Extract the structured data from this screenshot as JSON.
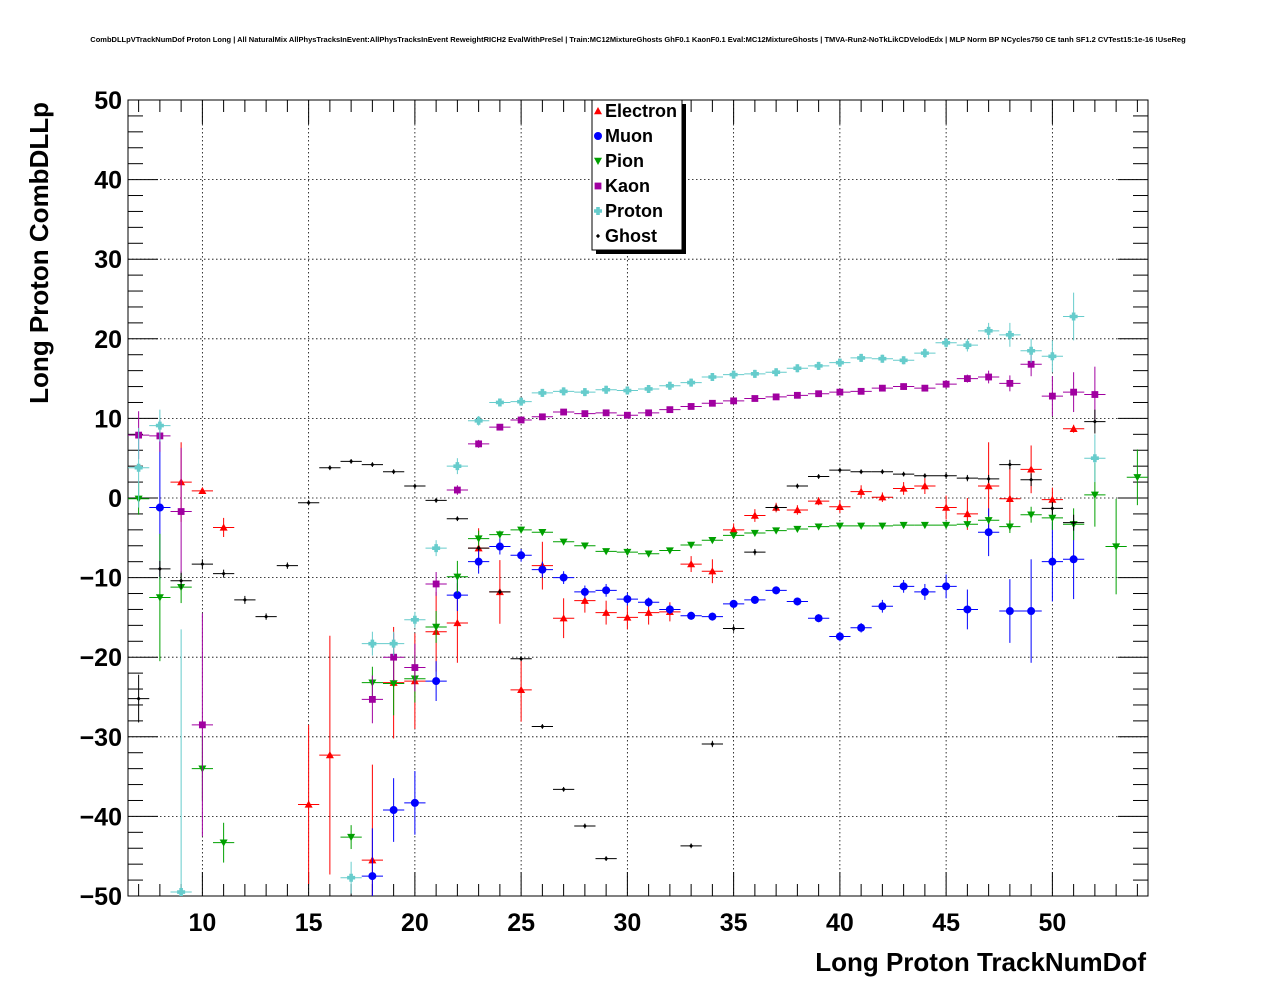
{
  "chart_data": {
    "type": "scatter",
    "title": "CombDLLpVTrackNumDof Proton Long | All NaturalMix AllPhysTracksInEvent:AllPhysTracksInEvent ReweightRICH2 EvalWithPreSel | Train:MC12MixtureGhosts GhF0.1 KaonF0.1 Eval:MC12MixtureGhosts | TMVA-Run2-NoTkLikCDVelodEdx | MLP Norm BP NCycles750 CE tanh SF1.2 CVTest15:1e-16 !UseReg",
    "xlabel": "Long Proton TrackNumDof",
    "ylabel": "Long Proton CombDLLp",
    "xlim": [
      6.5,
      54.5
    ],
    "ylim": [
      -50,
      50
    ],
    "xticks": [
      10,
      15,
      20,
      25,
      30,
      35,
      40,
      45,
      50
    ],
    "yticks": [
      -50,
      -40,
      -30,
      -20,
      -10,
      0,
      10,
      20,
      30,
      40,
      50
    ],
    "grid": true,
    "legend_position": "top-center",
    "series": [
      {
        "name": "Electron",
        "color": "#ff0000",
        "marker": "triangle-up",
        "points": [
          [
            9,
            2,
            5
          ],
          [
            10,
            0.9,
            0.3
          ],
          [
            11,
            -3.7,
            1.2
          ],
          [
            15,
            -38.5,
            10
          ],
          [
            16,
            -32.3,
            15
          ],
          [
            18,
            -45.5,
            12
          ],
          [
            19,
            -23.2,
            7
          ],
          [
            20,
            -23,
            6
          ],
          [
            21,
            -16.8,
            5
          ],
          [
            22,
            -15.7,
            5
          ],
          [
            23,
            -6.3,
            2.5
          ],
          [
            24,
            -11.8,
            4
          ],
          [
            25,
            -24.1,
            4
          ],
          [
            26,
            -8.5,
            3
          ],
          [
            27,
            -15.1,
            2.5
          ],
          [
            28,
            -12.9,
            1.5
          ],
          [
            29,
            -14.4,
            1.5
          ],
          [
            30,
            -15,
            1.5
          ],
          [
            31,
            -14.4,
            1.5
          ],
          [
            32,
            -14.3,
            1.2
          ],
          [
            33,
            -8.3,
            1
          ],
          [
            34,
            -9.2,
            1.5
          ],
          [
            35,
            -4,
            0.8
          ],
          [
            36,
            -2.2,
            0.8
          ],
          [
            37,
            -1.2,
            0.6
          ],
          [
            38,
            -1.5,
            0.6
          ],
          [
            39,
            -0.4,
            0.5
          ],
          [
            40,
            -1.1,
            0.8
          ],
          [
            41,
            0.8,
            0.8
          ],
          [
            42,
            0.1,
            0.6
          ],
          [
            43,
            1.2,
            0.8
          ],
          [
            44,
            1.5,
            1
          ],
          [
            45,
            -1.2,
            1.5
          ],
          [
            46,
            -2,
            2
          ],
          [
            47,
            1.5,
            5.5
          ],
          [
            48,
            -0.1,
            4
          ],
          [
            49,
            3.6,
            3
          ],
          [
            50,
            -0.2,
            1.5
          ],
          [
            51,
            8.7,
            0.5
          ]
        ]
      },
      {
        "name": "Muon",
        "color": "#0000ff",
        "marker": "circle",
        "points": [
          [
            8,
            -1.2,
            9
          ],
          [
            18,
            -47.5,
            6
          ],
          [
            19,
            -39.2,
            4
          ],
          [
            20,
            -38.3,
            4
          ],
          [
            21,
            -23,
            2.5
          ],
          [
            22,
            -12.2,
            2
          ],
          [
            23,
            -8,
            1.5
          ],
          [
            24,
            -6.1,
            1
          ],
          [
            25,
            -7.2,
            0.8
          ],
          [
            26,
            -9,
            1
          ],
          [
            27,
            -10,
            0.8
          ],
          [
            28,
            -11.8,
            0.8
          ],
          [
            29,
            -11.6,
            0.8
          ],
          [
            30,
            -12.7,
            0.8
          ],
          [
            31,
            -13.1,
            0.6
          ],
          [
            32,
            -14,
            0.6
          ],
          [
            33,
            -14.8,
            0.5
          ],
          [
            34,
            -14.9,
            0.5
          ],
          [
            35,
            -13.3,
            0.5
          ],
          [
            36,
            -12.8,
            0.5
          ],
          [
            37,
            -11.6,
            0.5
          ],
          [
            38,
            -13,
            0.5
          ],
          [
            39,
            -15.1,
            0.5
          ],
          [
            40,
            -17.4,
            0.6
          ],
          [
            41,
            -16.3,
            0.6
          ],
          [
            42,
            -13.6,
            0.8
          ],
          [
            43,
            -11.1,
            0.8
          ],
          [
            44,
            -11.8,
            1
          ],
          [
            45,
            -11.1,
            1.5
          ],
          [
            46,
            -14,
            2.5
          ],
          [
            47,
            -4.3,
            3
          ],
          [
            48,
            -14.2,
            4
          ],
          [
            49,
            -14.2,
            6.5
          ],
          [
            50,
            -8,
            5
          ],
          [
            51,
            -7.7,
            5
          ]
        ]
      },
      {
        "name": "Pion",
        "color": "#00a000",
        "marker": "triangle-down",
        "points": [
          [
            7,
            -0.1,
            2
          ],
          [
            8,
            -12.5,
            8
          ],
          [
            9,
            -11.2,
            2
          ],
          [
            10,
            -34,
            4
          ],
          [
            11,
            -43.3,
            2.5
          ],
          [
            17,
            -42.6,
            1.5
          ],
          [
            18,
            -23.2,
            2
          ],
          [
            19,
            -23.3,
            4
          ],
          [
            20,
            -22.7,
            3
          ],
          [
            21,
            -16.2,
            2
          ],
          [
            22,
            -9.9,
            2
          ],
          [
            23,
            -5.1,
            1
          ],
          [
            24,
            -4.6,
            0.5
          ],
          [
            25,
            -4,
            0.4
          ],
          [
            26,
            -4.3,
            0.4
          ],
          [
            27,
            -5.5,
            0.3
          ],
          [
            28,
            -6,
            0.3
          ],
          [
            29,
            -6.7,
            0.3
          ],
          [
            30,
            -6.8,
            0.3
          ],
          [
            31,
            -7,
            0.3
          ],
          [
            32,
            -6.6,
            0.3
          ],
          [
            33,
            -5.9,
            0.3
          ],
          [
            34,
            -5.3,
            0.3
          ],
          [
            35,
            -4.7,
            0.3
          ],
          [
            36,
            -4.4,
            0.3
          ],
          [
            37,
            -4.1,
            0.3
          ],
          [
            38,
            -3.9,
            0.3
          ],
          [
            39,
            -3.6,
            0.3
          ],
          [
            40,
            -3.5,
            0.3
          ],
          [
            41,
            -3.5,
            0.3
          ],
          [
            42,
            -3.5,
            0.3
          ],
          [
            43,
            -3.4,
            0.3
          ],
          [
            44,
            -3.4,
            0.3
          ],
          [
            45,
            -3.4,
            0.3
          ],
          [
            46,
            -3.3,
            0.4
          ],
          [
            47,
            -2.8,
            0.5
          ],
          [
            48,
            -3.6,
            0.8
          ],
          [
            49,
            -2.1,
            1
          ],
          [
            50,
            -2.5,
            1.5
          ],
          [
            51,
            -3.3,
            2
          ],
          [
            52,
            0.4,
            4
          ],
          [
            53,
            -6.1,
            6
          ],
          [
            54,
            2.6,
            3.5
          ]
        ]
      },
      {
        "name": "Kaon",
        "color": "#a000a0",
        "marker": "square",
        "points": [
          [
            7,
            7.9,
            3
          ],
          [
            8,
            7.8,
            2
          ],
          [
            9,
            -1.7,
            8
          ],
          [
            10,
            -28.5,
            14
          ],
          [
            18,
            -25.3,
            3
          ],
          [
            19,
            -20,
            3
          ],
          [
            20,
            -21.3,
            3
          ],
          [
            21,
            -10.8,
            1.5
          ],
          [
            22,
            1,
            0.6
          ],
          [
            23,
            6.8,
            0.5
          ],
          [
            24,
            8.9,
            0.4
          ],
          [
            25,
            9.8,
            0.3
          ],
          [
            26,
            10.2,
            0.3
          ],
          [
            27,
            10.8,
            0.3
          ],
          [
            28,
            10.6,
            0.3
          ],
          [
            29,
            10.7,
            0.3
          ],
          [
            30,
            10.4,
            0.3
          ],
          [
            31,
            10.7,
            0.3
          ],
          [
            32,
            11.1,
            0.3
          ],
          [
            33,
            11.5,
            0.3
          ],
          [
            34,
            11.9,
            0.3
          ],
          [
            35,
            12.2,
            0.3
          ],
          [
            36,
            12.5,
            0.3
          ],
          [
            37,
            12.7,
            0.3
          ],
          [
            38,
            12.9,
            0.3
          ],
          [
            39,
            13.1,
            0.3
          ],
          [
            40,
            13.3,
            0.3
          ],
          [
            41,
            13.4,
            0.3
          ],
          [
            42,
            13.8,
            0.4
          ],
          [
            43,
            14,
            0.4
          ],
          [
            44,
            13.8,
            0.4
          ],
          [
            45,
            14.3,
            0.5
          ],
          [
            46,
            15,
            0.5
          ],
          [
            47,
            15.2,
            0.8
          ],
          [
            48,
            14.4,
            1
          ],
          [
            49,
            16.8,
            1.5
          ],
          [
            50,
            12.8,
            2.5
          ],
          [
            51,
            13.3,
            2.5
          ],
          [
            52,
            13,
            3.5
          ]
        ]
      },
      {
        "name": "Proton",
        "color": "#66cccc",
        "marker": "cross",
        "points": [
          [
            7,
            3.8,
            5
          ],
          [
            8,
            9.1,
            2
          ],
          [
            9,
            -49.5,
            33
          ],
          [
            17,
            -47.7,
            2
          ],
          [
            18,
            -18.3,
            1.5
          ],
          [
            19,
            -18.3,
            1.5
          ],
          [
            20,
            -15.3,
            1
          ],
          [
            21,
            -6.3,
            1
          ],
          [
            22,
            4,
            1
          ],
          [
            23,
            9.7,
            0.6
          ],
          [
            24,
            12,
            0.5
          ],
          [
            25,
            12.1,
            0.5
          ],
          [
            26,
            13.2,
            0.5
          ],
          [
            27,
            13.4,
            0.5
          ],
          [
            28,
            13.3,
            0.5
          ],
          [
            29,
            13.6,
            0.5
          ],
          [
            30,
            13.5,
            0.5
          ],
          [
            31,
            13.7,
            0.5
          ],
          [
            32,
            14.1,
            0.5
          ],
          [
            33,
            14.5,
            0.5
          ],
          [
            34,
            15.2,
            0.5
          ],
          [
            35,
            15.5,
            0.5
          ],
          [
            36,
            15.6,
            0.5
          ],
          [
            37,
            15.8,
            0.5
          ],
          [
            38,
            16.3,
            0.5
          ],
          [
            39,
            16.6,
            0.5
          ],
          [
            40,
            17,
            0.5
          ],
          [
            41,
            17.6,
            0.5
          ],
          [
            42,
            17.5,
            0.5
          ],
          [
            43,
            17.3,
            0.5
          ],
          [
            44,
            18.2,
            0.6
          ],
          [
            45,
            19.5,
            0.6
          ],
          [
            46,
            19.2,
            0.8
          ],
          [
            47,
            21,
            1
          ],
          [
            48,
            20.5,
            1.5
          ],
          [
            49,
            18.5,
            1.5
          ],
          [
            50,
            17.8,
            2
          ],
          [
            51,
            22.8,
            3
          ],
          [
            52,
            5,
            3
          ]
        ]
      },
      {
        "name": "Ghost",
        "color": "#000000",
        "marker": "diamond",
        "points": [
          [
            7,
            -25.2,
            3
          ],
          [
            8,
            -8.9,
            1
          ],
          [
            9,
            -10.4,
            1
          ],
          [
            10,
            -8.3,
            0.6
          ],
          [
            11,
            -9.5,
            0.5
          ],
          [
            12,
            -12.8,
            0.5
          ],
          [
            13,
            -14.9,
            0.4
          ],
          [
            14,
            -8.5,
            0.4
          ],
          [
            15,
            -0.6,
            0.3
          ],
          [
            16,
            3.8,
            0.3
          ],
          [
            17,
            4.6,
            0.3
          ],
          [
            18,
            4.2,
            0.3
          ],
          [
            19,
            3.3,
            0.3
          ],
          [
            20,
            1.5,
            0.3
          ],
          [
            21,
            -0.3,
            0.3
          ],
          [
            22,
            -2.6,
            0.3
          ],
          [
            23,
            -6.3,
            0.3
          ],
          [
            24,
            -11.8,
            0.3
          ],
          [
            25,
            -20.2,
            0.3
          ],
          [
            26,
            -28.7,
            0.3
          ],
          [
            27,
            -36.6,
            0.3
          ],
          [
            28,
            -41.2,
            0.3
          ],
          [
            29,
            -45.3,
            0.3
          ],
          [
            33,
            -43.7,
            0.3
          ],
          [
            34,
            -30.9,
            0.4
          ],
          [
            35,
            -16.4,
            0.4
          ],
          [
            36,
            -6.8,
            0.4
          ],
          [
            37,
            -1.2,
            0.4
          ],
          [
            38,
            1.5,
            0.3
          ],
          [
            39,
            2.7,
            0.3
          ],
          [
            40,
            3.5,
            0.3
          ],
          [
            41,
            3.3,
            0.3
          ],
          [
            42,
            3.3,
            0.3
          ],
          [
            43,
            3,
            0.3
          ],
          [
            44,
            2.8,
            0.3
          ],
          [
            45,
            2.8,
            0.4
          ],
          [
            46,
            2.5,
            0.4
          ],
          [
            47,
            2.4,
            0.5
          ],
          [
            48,
            4.2,
            0.6
          ],
          [
            49,
            2.3,
            0.8
          ],
          [
            50,
            -1.3,
            0.8
          ],
          [
            51,
            -3.1,
            1
          ],
          [
            52,
            9.6,
            1.5
          ]
        ]
      }
    ]
  }
}
